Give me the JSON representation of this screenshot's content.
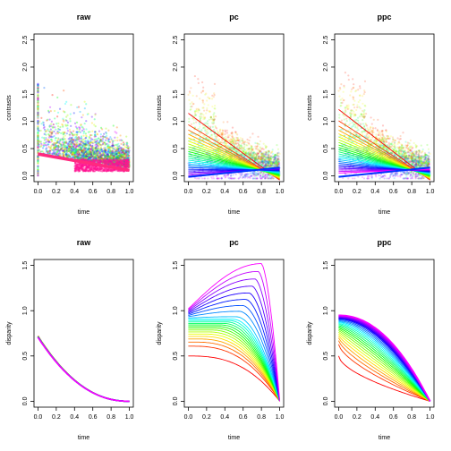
{
  "chart_data": [
    {
      "type": "scatter",
      "title": "raw",
      "xlabel": "time",
      "ylabel": "contrasts",
      "xlim": [
        0,
        1
      ],
      "ylim": [
        0,
        2.5
      ],
      "xticks": [
        "0.0",
        "0.2",
        "0.4",
        "0.6",
        "0.8",
        "1.0"
      ],
      "yticks": [
        "0.0",
        "0.5",
        "1.0",
        "1.5",
        "2.0",
        "2.5"
      ],
      "series": [
        {
          "kind": "points",
          "description_values": {
            "x_range": [
              0,
              1
            ],
            "y_mean_at_0": 0.4,
            "y_mean_at_1": 0.15,
            "y_spread": 0.35
          }
        },
        {
          "kind": "fit-lines",
          "lines": [
            {
              "from": [
                0,
                0.4
              ],
              "to": [
                1,
                0.1
              ],
              "color": "#ff2a7f"
            }
          ]
        }
      ]
    },
    {
      "type": "scatter",
      "title": "pc",
      "xlabel": "time",
      "ylabel": "contrasts",
      "xlim": [
        0,
        1
      ],
      "ylim": [
        0,
        2.5
      ],
      "xticks": [
        "0.0",
        "0.2",
        "0.4",
        "0.6",
        "0.8",
        "1.0"
      ],
      "yticks": [
        "0.0",
        "0.5",
        "1.0",
        "1.5",
        "2.0",
        "2.5"
      ],
      "series": [
        {
          "kind": "fan-lines",
          "n": 24,
          "y0_range": [
            1.15,
            -0.03
          ],
          "y1_range": [
            -0.08,
            0.15
          ],
          "colors": "rainbow-red-to-magenta"
        }
      ]
    },
    {
      "type": "scatter",
      "title": "ppc",
      "xlabel": "time",
      "ylabel": "contrasts",
      "xlim": [
        0,
        1
      ],
      "ylim": [
        0,
        2.5
      ],
      "xticks": [
        "0.0",
        "0.2",
        "0.4",
        "0.6",
        "0.8",
        "1.0"
      ],
      "yticks": [
        "0.0",
        "0.5",
        "1.0",
        "1.5",
        "2.0",
        "2.5"
      ],
      "series": [
        {
          "kind": "fan-lines",
          "n": 24,
          "y0_range": [
            1.22,
            0.05
          ],
          "y1_range": [
            -0.08,
            0.12
          ],
          "colors": "rainbow-red-to-magenta"
        }
      ]
    },
    {
      "type": "line",
      "title": "raw",
      "xlabel": "time",
      "ylabel": "disparity",
      "xlim": [
        0,
        1
      ],
      "ylim": [
        0,
        1.5
      ],
      "xticks": [
        "0.0",
        "0.2",
        "0.4",
        "0.6",
        "0.8",
        "1.0"
      ],
      "yticks": [
        "0.0",
        "0.5",
        "1.0",
        "1.5"
      ],
      "series": [
        {
          "kind": "decay-curves",
          "n": 8,
          "y0": 0.72,
          "y1": 0.0,
          "colors": "rainbow-red-to-magenta"
        }
      ]
    },
    {
      "type": "line",
      "title": "pc",
      "xlabel": "time",
      "ylabel": "disparity",
      "xlim": [
        0,
        1
      ],
      "ylim": [
        0,
        1.5
      ],
      "xticks": [
        "0.0",
        "0.2",
        "0.4",
        "0.6",
        "0.8",
        "1.0"
      ],
      "yticks": [
        "0.0",
        "0.5",
        "1.0",
        "1.5"
      ],
      "series": [
        {
          "kind": "hump-curves",
          "n": 24,
          "y0_range": [
            0.5,
            1.02
          ],
          "peak_x_range": [
            0.0,
            0.8
          ],
          "peak_y_range": [
            0.5,
            1.52
          ],
          "y1": 0.0,
          "colors": "rainbow-red-to-magenta"
        }
      ]
    },
    {
      "type": "line",
      "title": "ppc",
      "xlabel": "time",
      "ylabel": "disparity",
      "xlim": [
        0,
        1
      ],
      "ylim": [
        0,
        1.5
      ],
      "xticks": [
        "0.0",
        "0.2",
        "0.4",
        "0.6",
        "0.8",
        "1.0"
      ],
      "yticks": [
        "0.0",
        "0.5",
        "1.0",
        "1.5"
      ],
      "series": [
        {
          "kind": "convex-curves",
          "n": 24,
          "y0_range": [
            0.5,
            0.95
          ],
          "y1": 0.0,
          "colors": "rainbow-red-to-magenta"
        }
      ]
    }
  ]
}
